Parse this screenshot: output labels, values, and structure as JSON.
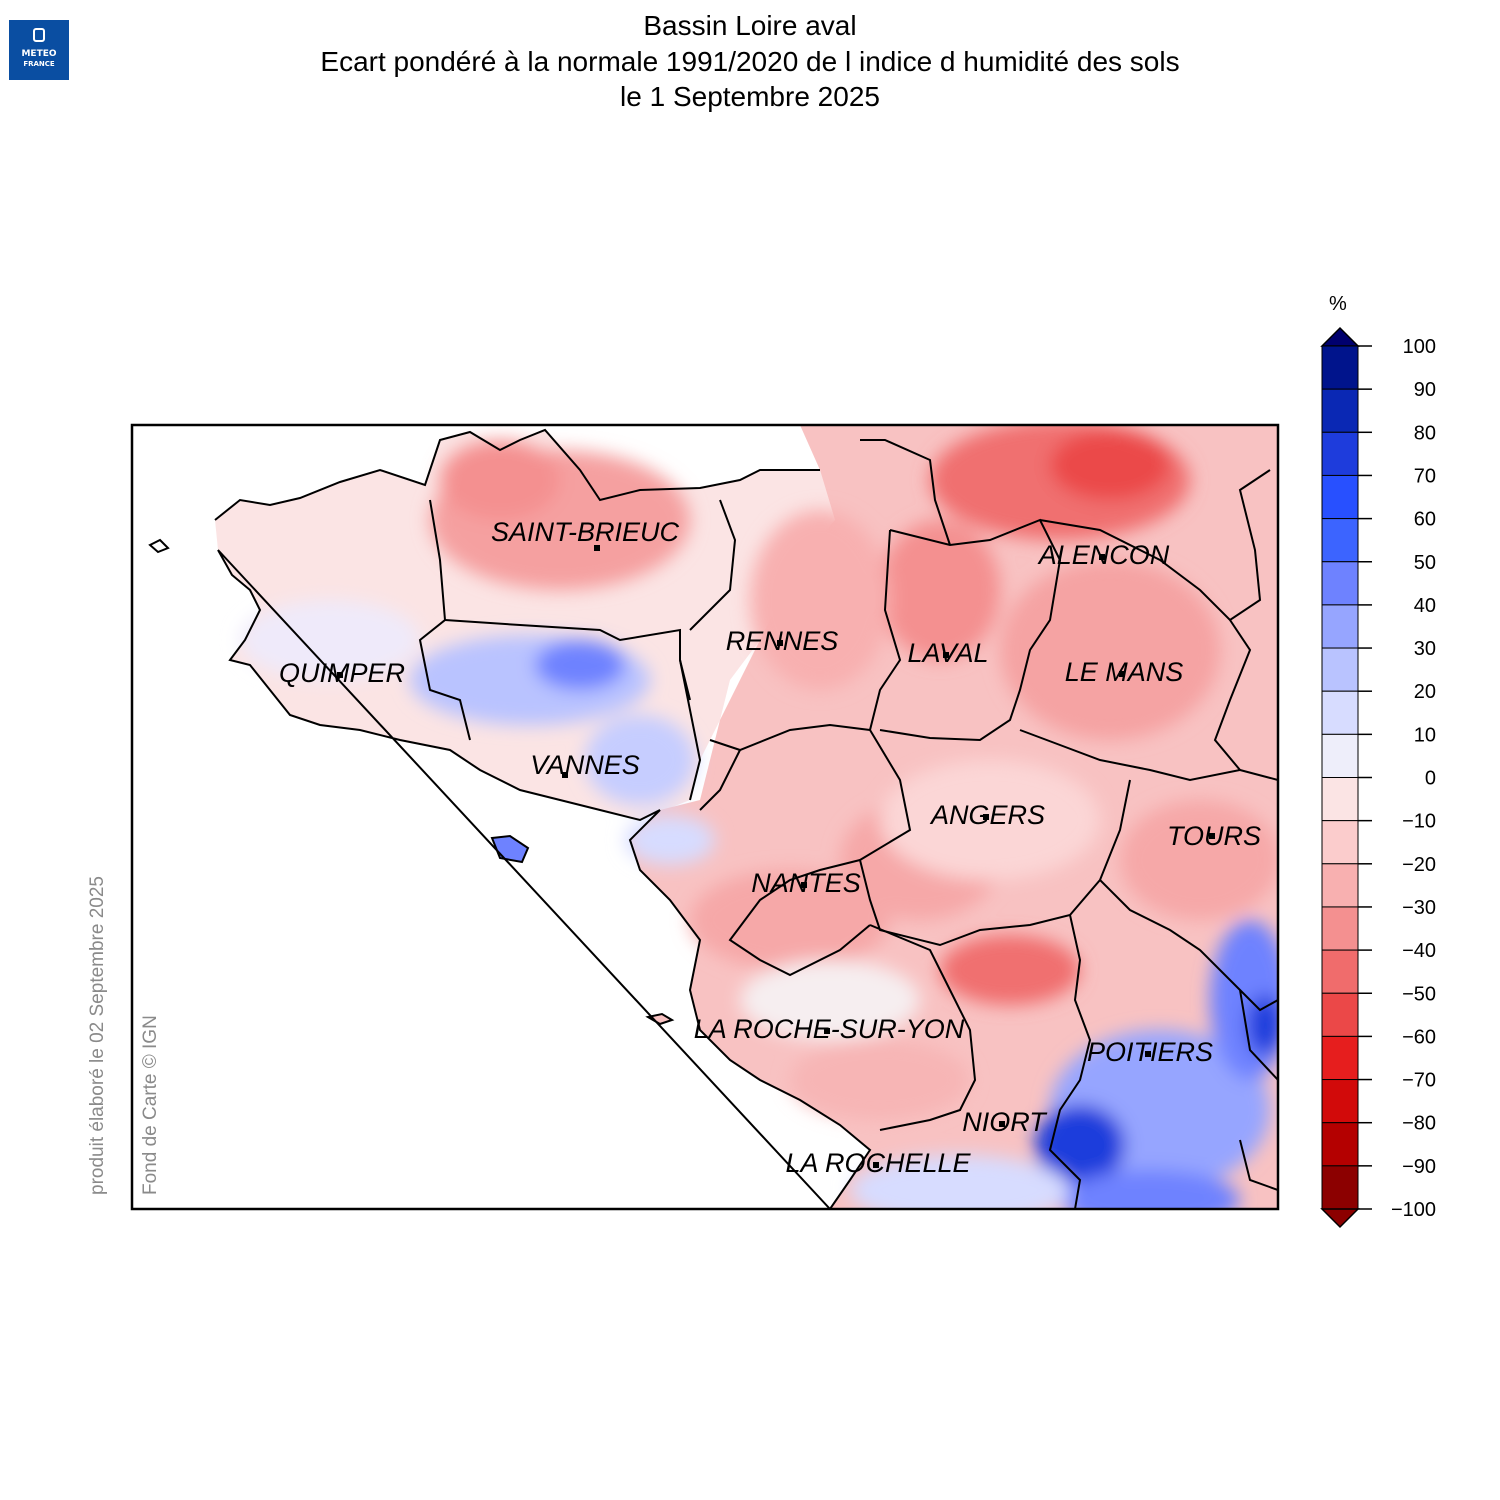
{
  "logo": {
    "line1": "METEO",
    "line2": "FRANCE"
  },
  "header": {
    "title": "Bassin Loire aval",
    "subtitle": "Ecart pondéré à la normale 1991/2020 de l indice d humidité des sols",
    "date": "le 1 Septembre 2025"
  },
  "credits": {
    "produced": "produit élaboré le 02 Septembre 2025",
    "basemap": "Fond de Carte © IGN"
  },
  "legend": {
    "unit": "%",
    "ticks": [
      "100",
      "90",
      "80",
      "70",
      "60",
      "50",
      "40",
      "30",
      "20",
      "10",
      "0",
      "−10",
      "−20",
      "−30",
      "−40",
      "−50",
      "−60",
      "−70",
      "−80",
      "−90",
      "−100"
    ],
    "colors": [
      "#00006e",
      "#00148c",
      "#0a28b4",
      "#1e3cdc",
      "#2850ff",
      "#3c64ff",
      "#6e82ff",
      "#96a5ff",
      "#b9c3ff",
      "#d7dcff",
      "#eeeefa",
      "#fbe4e4",
      "#fbcccc",
      "#f8b0b0",
      "#f49090",
      "#f06c6c",
      "#eb4848",
      "#e61e1e",
      "#d20a0a",
      "#b40000",
      "#8c0000"
    ]
  },
  "cities": [
    {
      "name": "SAINT-BRIEUC"
    },
    {
      "name": "QUIMPER"
    },
    {
      "name": "VANNES"
    },
    {
      "name": "RENNES"
    },
    {
      "name": "LAVAL"
    },
    {
      "name": "ALENCON"
    },
    {
      "name": "LE MANS"
    },
    {
      "name": "ANGERS"
    },
    {
      "name": "TOURS"
    },
    {
      "name": "NANTES"
    },
    {
      "name": "LA ROCHE-SUR-YON"
    },
    {
      "name": "POITIERS"
    },
    {
      "name": "NIORT"
    },
    {
      "name": "LA ROCHELLE"
    }
  ]
}
